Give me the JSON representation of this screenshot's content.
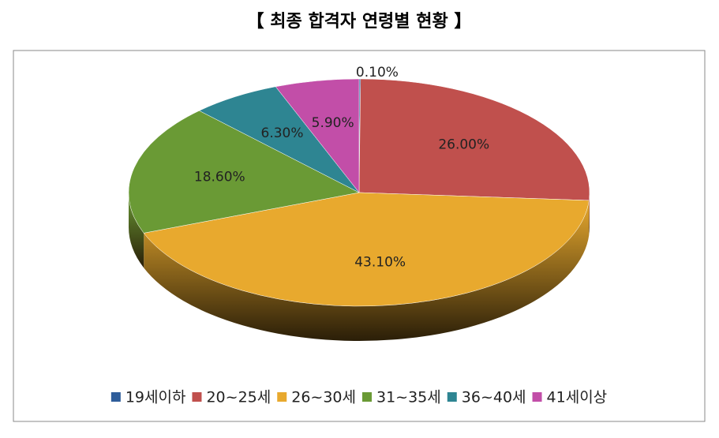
{
  "chart_data": {
    "type": "pie",
    "title": "【 최종 합격자 연령별 현황 】",
    "categories": [
      "19세이하",
      "20~25세",
      "26~30세",
      "31~35세",
      "36~40세",
      "41세이상"
    ],
    "values": [
      0.1,
      26.0,
      43.1,
      18.6,
      6.3,
      5.9
    ],
    "value_labels": [
      "0.10%",
      "26.00%",
      "43.10%",
      "18.60%",
      "6.30%",
      "5.90%"
    ],
    "colors": [
      "#2e5d9a",
      "#c0504d",
      "#e8a92e",
      "#6a9a35",
      "#2e8592",
      "#c24ea8"
    ],
    "legend": "bottom"
  }
}
